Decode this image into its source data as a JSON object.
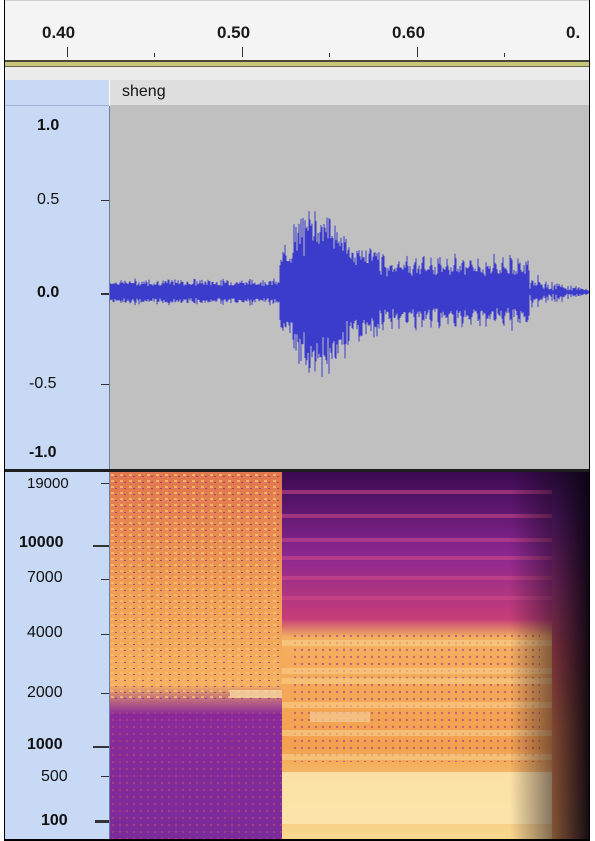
{
  "ruler": {
    "labels": [
      "0.40",
      "0.50",
      "0.60",
      "0."
    ]
  },
  "track": {
    "name": "sheng"
  },
  "waveform_axis": {
    "labels": [
      "1.0",
      "0.5",
      "0.0",
      "-0.5",
      "-1.0"
    ]
  },
  "spectrogram_axis": {
    "labels": [
      "19000",
      "10000",
      "7000",
      "4000",
      "2000",
      "1000",
      "500",
      "100"
    ]
  },
  "colors": {
    "waveform": "#3c3ccc",
    "waveform_bg": "#c0c0c0",
    "ruler_accent": "#c8c47a",
    "side_panel": "#c7d9f4"
  }
}
